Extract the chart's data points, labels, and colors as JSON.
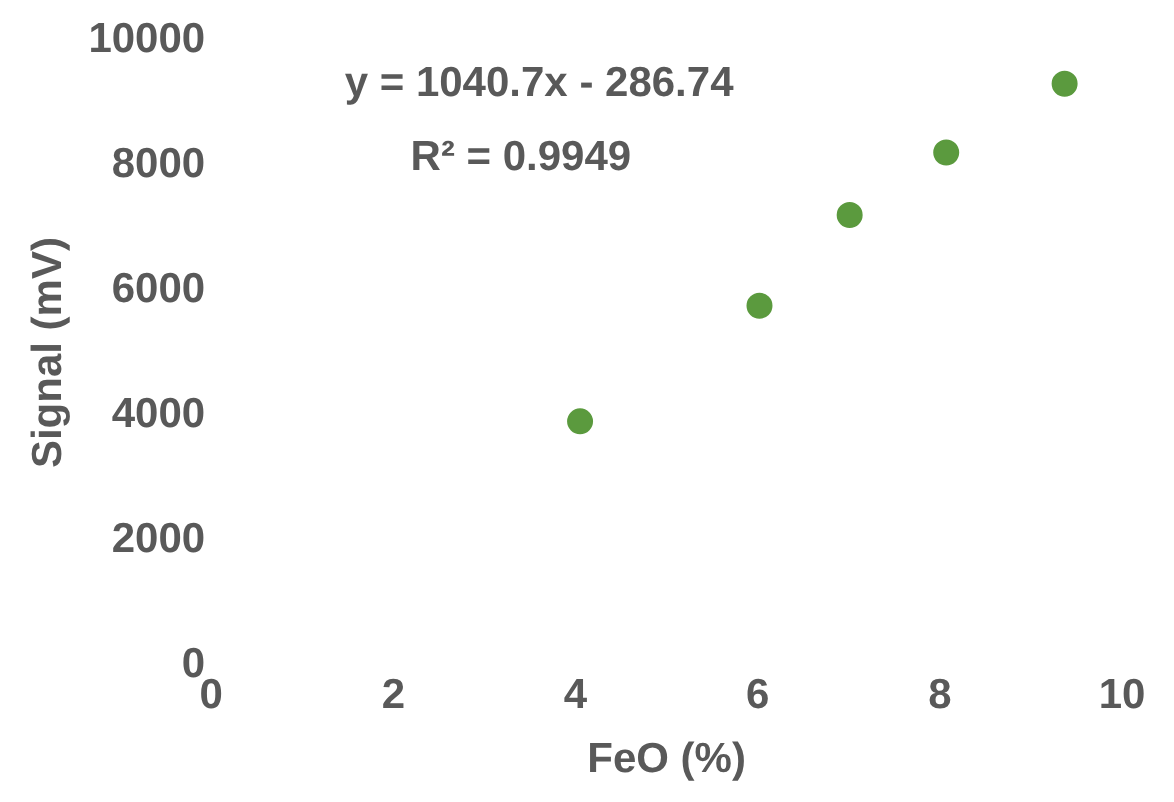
{
  "chart_data": {
    "type": "scatter",
    "xlabel": "FeO (%)",
    "ylabel": "Signal (mV)",
    "x": [
      4.05,
      6.02,
      7.01,
      8.07,
      9.37
    ],
    "series": [
      {
        "color": "#5b9a3e",
        "values": [
          3900,
          5750,
          7200,
          8200,
          9300
        ]
      }
    ],
    "xlim": [
      0,
      10
    ],
    "xticks": [
      0,
      2,
      4,
      6,
      8,
      10
    ],
    "ylim": [
      0,
      10000
    ],
    "yticks": [
      0,
      2000,
      4000,
      6000,
      8000,
      10000
    ],
    "annotations": [
      "y = 1040.7x - 286.74",
      "R² = 0.9949"
    ],
    "grid": false,
    "legend": false,
    "marker": "circle"
  }
}
